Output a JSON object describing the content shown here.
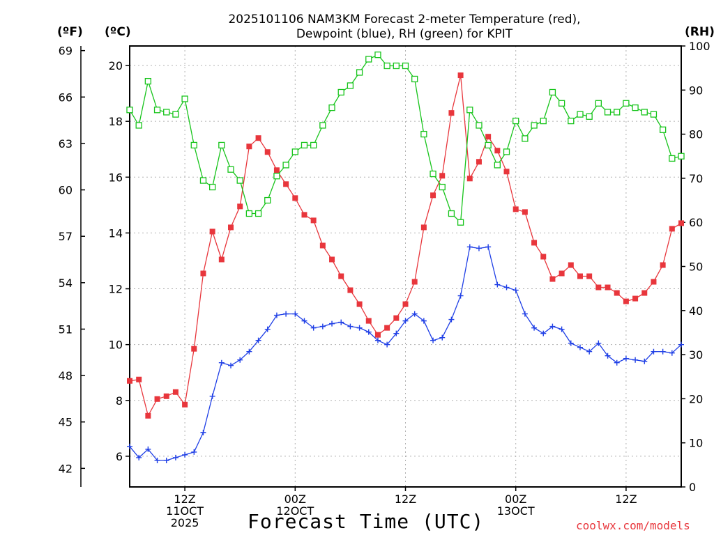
{
  "title": {
    "line1": "2025101106 NAM3KM Forecast 2-meter Temperature (red),",
    "line2": "Dewpoint (blue), RH (green) for KPIT"
  },
  "units": {
    "fahrenheit": "(ºF)",
    "celsius": "(ºC)",
    "rh": "(RH)"
  },
  "xaxis_title": "Forecast Time (UTC)",
  "credit": "coolwx.com/models",
  "colors": {
    "temperature": "#e8363c",
    "dewpoint": "#1f3fe6",
    "rh": "#16c41a",
    "grid": "#b0b0b0"
  },
  "chart_data": {
    "type": "line",
    "title": "2025101106 NAM3KM Forecast 2-meter Temperature (red), Dewpoint (blue), RH (green) for KPIT",
    "xlabel": "Forecast Time (UTC)",
    "x_unit": "hours since 2025-10-11 06Z",
    "xlim": [
      0,
      60
    ],
    "x_ticks": [
      {
        "x": 6,
        "labels": [
          "12Z",
          "11OCT",
          "2025"
        ]
      },
      {
        "x": 18,
        "labels": [
          "00Z",
          "12OCT"
        ]
      },
      {
        "x": 30,
        "labels": [
          "12Z"
        ]
      },
      {
        "x": 42,
        "labels": [
          "00Z",
          "13OCT"
        ]
      },
      {
        "x": 54,
        "labels": [
          "12Z"
        ]
      }
    ],
    "y_left_celsius": {
      "label": "(ºC)",
      "lim": [
        4.9,
        20.7
      ],
      "ticks": [
        6,
        8,
        10,
        12,
        14,
        16,
        18,
        20
      ]
    },
    "y_left_fahrenheit": {
      "label": "(ºF)",
      "lim": [
        40.8,
        69.3
      ],
      "ticks": [
        42,
        45,
        48,
        51,
        54,
        57,
        60,
        63,
        66,
        69
      ]
    },
    "y_right_rh": {
      "label": "(RH)",
      "lim": [
        0,
        100
      ],
      "ticks": [
        0,
        10,
        20,
        30,
        40,
        50,
        60,
        70,
        80,
        90,
        100
      ]
    },
    "series": [
      {
        "name": "2-meter Temperature",
        "axis": "celsius",
        "marker": "filled-square",
        "color": "#e8363c",
        "x": [
          0,
          1,
          2,
          3,
          4,
          5,
          6,
          7,
          8,
          9,
          10,
          11,
          12,
          13,
          14,
          15,
          16,
          17,
          18,
          19,
          20,
          21,
          22,
          23,
          24,
          25,
          26,
          27,
          28,
          29,
          30,
          31,
          32,
          33,
          34,
          35,
          36,
          37,
          38,
          39,
          40,
          41,
          42,
          43,
          44,
          45,
          46,
          47,
          48,
          49,
          50,
          51,
          52,
          53,
          54,
          55,
          56,
          57,
          58,
          59,
          60
        ],
        "values": [
          8.7,
          8.75,
          7.45,
          8.05,
          8.15,
          8.3,
          7.85,
          9.85,
          12.55,
          14.05,
          13.05,
          14.2,
          14.95,
          17.1,
          17.4,
          16.9,
          16.25,
          15.75,
          15.25,
          14.65,
          14.45,
          13.55,
          13.05,
          12.45,
          11.95,
          11.45,
          10.85,
          10.35,
          10.6,
          10.95,
          11.45,
          12.25,
          14.2,
          15.35,
          16.05,
          18.3,
          19.65,
          15.95,
          16.55,
          17.45,
          16.95,
          16.2,
          14.85,
          14.75,
          13.65,
          13.15,
          12.35,
          12.55,
          12.85,
          12.45,
          12.45,
          12.05,
          12.05,
          11.85,
          11.55,
          11.65,
          11.85,
          12.25,
          12.85,
          14.15,
          14.35
        ]
      },
      {
        "name": "Dewpoint",
        "axis": "celsius",
        "marker": "plus",
        "color": "#1f3fe6",
        "x": [
          0,
          1,
          2,
          3,
          4,
          5,
          6,
          7,
          8,
          9,
          10,
          11,
          12,
          13,
          14,
          15,
          16,
          17,
          18,
          19,
          20,
          21,
          22,
          23,
          24,
          25,
          26,
          27,
          28,
          29,
          30,
          31,
          32,
          33,
          34,
          35,
          36,
          37,
          38,
          39,
          40,
          41,
          42,
          43,
          44,
          45,
          46,
          47,
          48,
          49,
          50,
          51,
          52,
          53,
          54,
          55,
          56,
          57,
          58,
          59,
          60
        ],
        "values": [
          6.35,
          5.95,
          6.25,
          5.85,
          5.85,
          5.95,
          6.05,
          6.15,
          6.85,
          8.15,
          9.35,
          9.25,
          9.45,
          9.75,
          10.15,
          10.55,
          11.05,
          11.1,
          11.1,
          10.85,
          10.6,
          10.65,
          10.75,
          10.8,
          10.65,
          10.6,
          10.45,
          10.15,
          10.0,
          10.4,
          10.85,
          11.1,
          10.85,
          10.15,
          10.25,
          10.9,
          11.75,
          13.5,
          13.45,
          13.5,
          12.15,
          12.05,
          11.95,
          11.1,
          10.6,
          10.4,
          10.65,
          10.55,
          10.05,
          9.9,
          9.75,
          10.05,
          9.6,
          9.35,
          9.5,
          9.45,
          9.4,
          9.75,
          9.75,
          9.7,
          10.0
        ]
      },
      {
        "name": "Relative Humidity",
        "axis": "rh",
        "marker": "open-square",
        "color": "#16c41a",
        "x": [
          0,
          1,
          2,
          3,
          4,
          5,
          6,
          7,
          8,
          9,
          10,
          11,
          12,
          13,
          14,
          15,
          16,
          17,
          18,
          19,
          20,
          21,
          22,
          23,
          24,
          25,
          26,
          27,
          28,
          29,
          30,
          31,
          32,
          33,
          34,
          35,
          36,
          37,
          38,
          39,
          40,
          41,
          42,
          43,
          44,
          45,
          46,
          47,
          48,
          49,
          50,
          51,
          52,
          53,
          54,
          55,
          56,
          57,
          58,
          59,
          60
        ],
        "values": [
          85.5,
          82,
          92,
          85.5,
          85,
          84.5,
          88,
          77.5,
          69.5,
          68,
          77.5,
          72,
          69.5,
          62,
          62,
          65,
          70.5,
          73,
          76,
          77.5,
          77.5,
          82,
          86,
          89.5,
          91,
          94,
          97,
          98,
          95.5,
          95.5,
          95.5,
          92.5,
          80,
          71,
          68,
          62,
          60,
          85.5,
          82,
          77.5,
          73,
          76,
          83,
          79,
          82,
          83,
          89.5,
          87,
          83,
          84.5,
          84,
          87,
          85,
          85,
          87,
          86,
          85,
          84.5,
          81,
          74.5,
          75
        ]
      }
    ]
  }
}
